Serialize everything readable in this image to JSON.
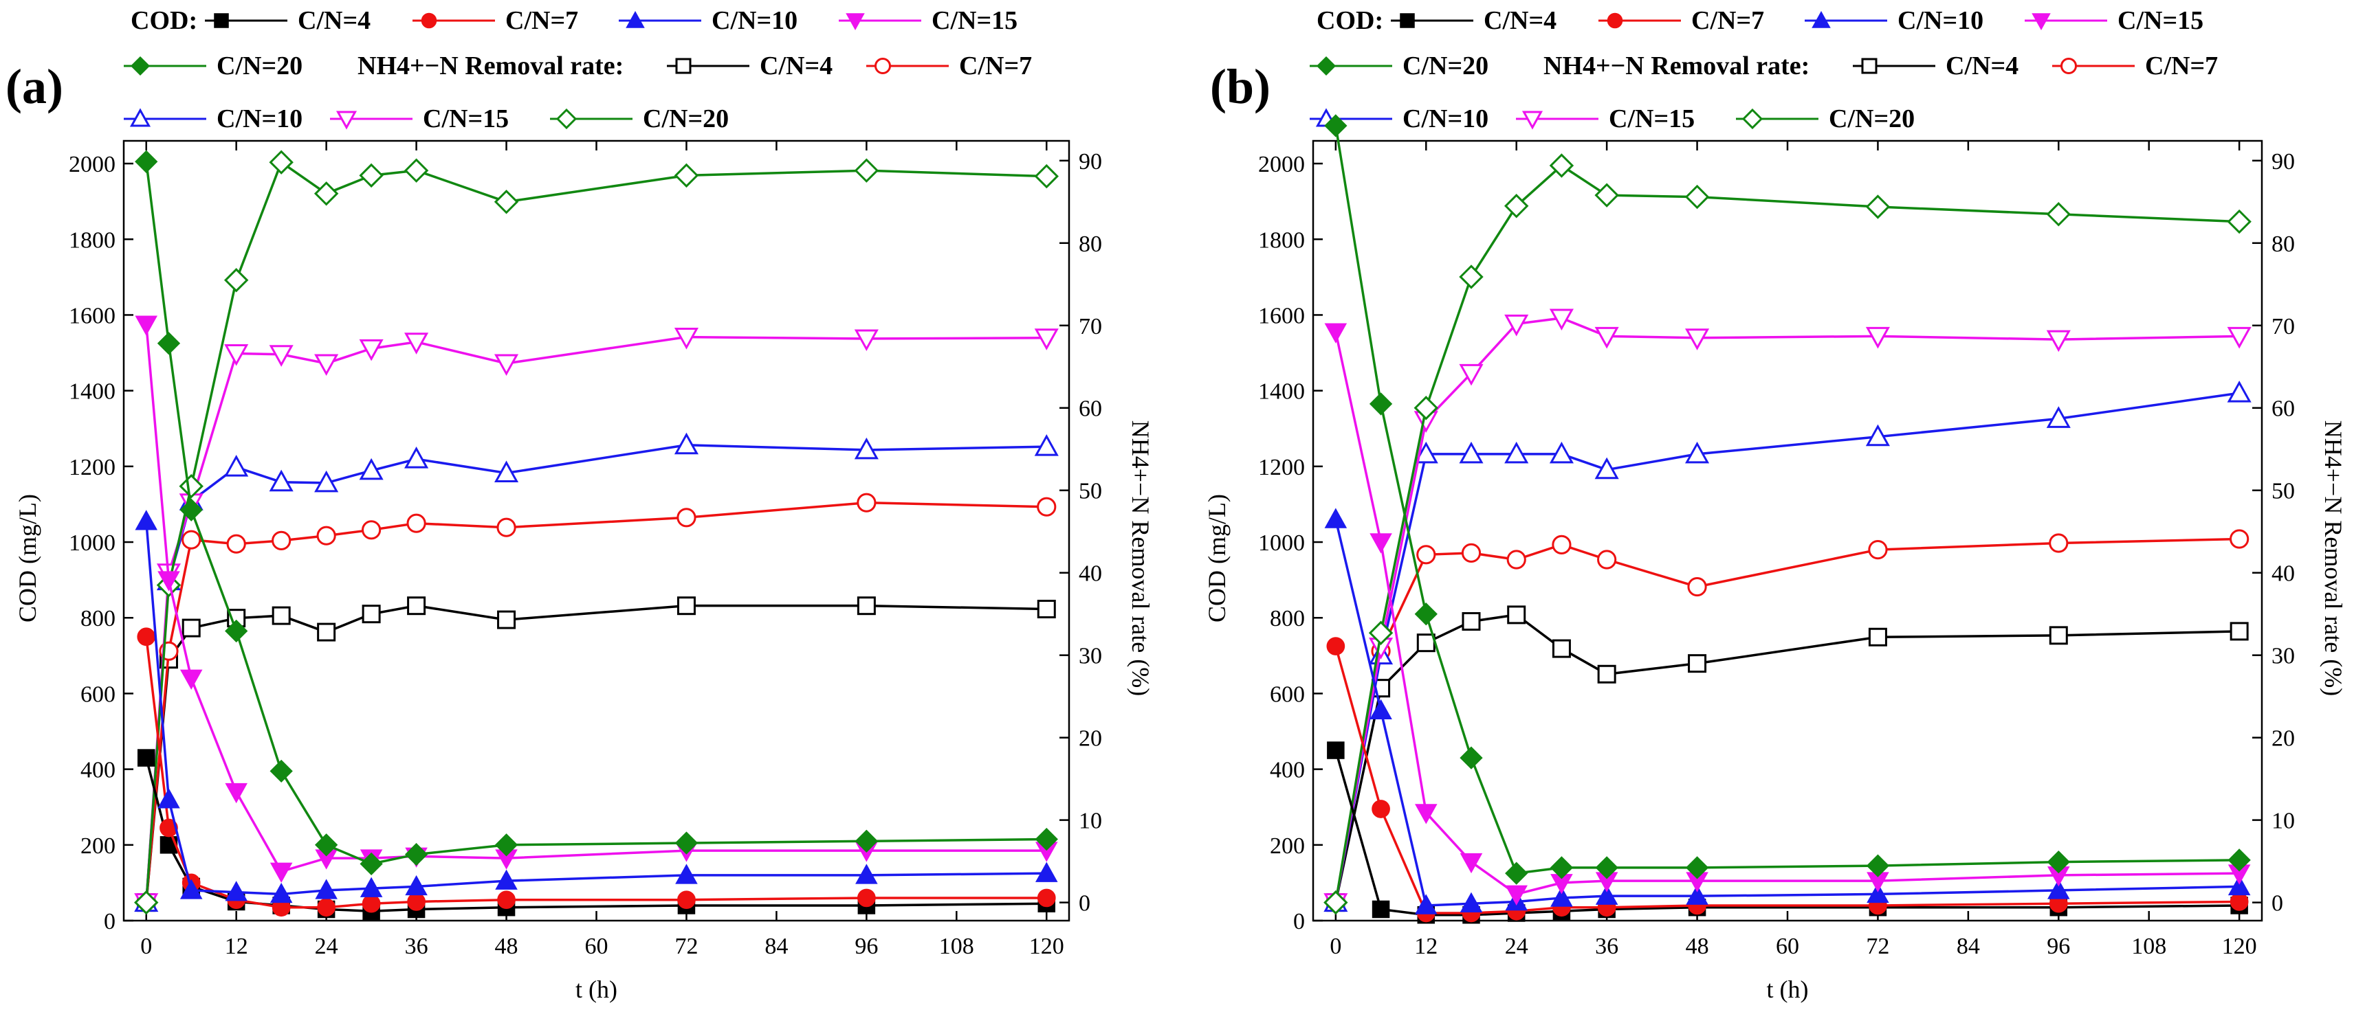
{
  "chart_data": [
    {
      "panel": "(a)",
      "type": "line",
      "legend": {
        "cod_prefix": "COD:",
        "nh4_prefix": "NH4+−N Removal rate:",
        "labels": [
          "C/N=4",
          "C/N=7",
          "C/N=10",
          "C/N=15",
          "C/N=20"
        ]
      },
      "xlabel": "t (h)",
      "ylabel": "COD (mg/L)",
      "y2label": "NH4+−N Removal rate (%)",
      "xticks": [
        0,
        12,
        24,
        36,
        48,
        60,
        72,
        84,
        96,
        108,
        120
      ],
      "yticks": [
        0,
        200,
        400,
        600,
        800,
        1000,
        1200,
        1400,
        1600,
        1800,
        2000
      ],
      "y2ticks": [
        0,
        10,
        20,
        30,
        40,
        50,
        60,
        70,
        80,
        90
      ],
      "xlim": [
        -3,
        123
      ],
      "ylim": [
        0,
        2060
      ],
      "y2lim": [
        -2.2,
        92.4
      ],
      "x": [
        0,
        3,
        6,
        12,
        18,
        24,
        30,
        36,
        48,
        72,
        96,
        120
      ],
      "cod_series": [
        {
          "name": "C/N=4",
          "values": [
            430,
            200,
            90,
            50,
            40,
            30,
            25,
            30,
            35,
            40,
            40,
            45
          ]
        },
        {
          "name": "C/N=7",
          "values": [
            750,
            245,
            100,
            55,
            35,
            35,
            45,
            50,
            55,
            55,
            60,
            60
          ]
        },
        {
          "name": "C/N=10",
          "values": [
            1055,
            320,
            80,
            75,
            70,
            80,
            85,
            90,
            105,
            120,
            120,
            125
          ]
        },
        {
          "name": "C/N=15",
          "values": [
            1575,
            900,
            640,
            340,
            130,
            165,
            165,
            170,
            165,
            185,
            185,
            185
          ]
        },
        {
          "name": "C/N=20",
          "values": [
            2005,
            1525,
            1085,
            765,
            395,
            200,
            150,
            175,
            200,
            205,
            210,
            215
          ]
        }
      ],
      "nh4_series": [
        {
          "name": "C/N=4",
          "values": [
            0,
            29.5,
            33.3,
            34.5,
            34.8,
            32.8,
            35.0,
            36.0,
            34.3,
            36.0,
            36.0,
            35.6
          ]
        },
        {
          "name": "C/N=7",
          "values": [
            0,
            30.5,
            44.0,
            43.5,
            43.9,
            44.5,
            45.2,
            46.0,
            45.5,
            46.7,
            48.5,
            48.0
          ]
        },
        {
          "name": "C/N=10",
          "values": [
            0,
            39.0,
            48.7,
            52.8,
            51.0,
            50.9,
            52.4,
            53.8,
            52.1,
            55.5,
            54.9,
            55.3
          ]
        },
        {
          "name": "C/N=15",
          "values": [
            0,
            40.0,
            48.5,
            66.6,
            66.5,
            65.4,
            67.2,
            68.0,
            65.4,
            68.6,
            68.4,
            68.5
          ]
        },
        {
          "name": "C/N=20",
          "values": [
            0,
            38.5,
            50.5,
            75.5,
            89.8,
            86.0,
            88.2,
            88.8,
            85.0,
            88.2,
            88.8,
            88.1
          ]
        }
      ]
    },
    {
      "panel": "(b)",
      "type": "line",
      "legend": {
        "cod_prefix": "COD:",
        "nh4_prefix": "NH4+−N Removal rate:",
        "labels": [
          "C/N=4",
          "C/N=7",
          "C/N=10",
          "C/N=15",
          "C/N=20"
        ]
      },
      "xlabel": "t (h)",
      "ylabel": "COD (mg/L)",
      "y2label": "NH4+−N Removal rate (%)",
      "xticks": [
        0,
        12,
        24,
        36,
        48,
        60,
        72,
        84,
        96,
        108,
        120
      ],
      "yticks": [
        0,
        200,
        400,
        600,
        800,
        1000,
        1200,
        1400,
        1600,
        1800,
        2000
      ],
      "y2ticks": [
        0,
        10,
        20,
        30,
        40,
        50,
        60,
        70,
        80,
        90
      ],
      "xlim": [
        -3,
        123
      ],
      "ylim": [
        0,
        2060
      ],
      "y2lim": [
        -2.2,
        92.4
      ],
      "x": [
        0,
        6,
        12,
        18,
        24,
        30,
        36,
        48,
        72,
        96,
        120
      ],
      "cod_series": [
        {
          "name": "C/N=4",
          "values": [
            450,
            30,
            15,
            15,
            20,
            25,
            30,
            35,
            35,
            35,
            40
          ]
        },
        {
          "name": "C/N=7",
          "values": [
            725,
            295,
            20,
            20,
            25,
            35,
            35,
            40,
            40,
            45,
            50
          ]
        },
        {
          "name": "C/N=10",
          "values": [
            1060,
            555,
            40,
            45,
            50,
            60,
            65,
            65,
            70,
            80,
            90
          ]
        },
        {
          "name": "C/N=15",
          "values": [
            1555,
            1000,
            285,
            155,
            70,
            100,
            105,
            105,
            105,
            120,
            125
          ]
        },
        {
          "name": "C/N=20",
          "values": [
            2100,
            1365,
            810,
            430,
            125,
            140,
            140,
            140,
            145,
            155,
            160
          ]
        }
      ],
      "nh4_series": [
        {
          "name": "C/N=4",
          "values": [
            0,
            26.0,
            31.5,
            34.1,
            34.9,
            30.8,
            27.7,
            29.0,
            32.2,
            32.4,
            32.9
          ]
        },
        {
          "name": "C/N=7",
          "values": [
            0,
            30.5,
            42.2,
            42.4,
            41.6,
            43.4,
            41.6,
            38.3,
            42.8,
            43.6,
            44.1
          ]
        },
        {
          "name": "C/N=10",
          "values": [
            0,
            30.0,
            54.4,
            54.4,
            54.4,
            54.4,
            52.5,
            54.4,
            56.5,
            58.7,
            61.8
          ]
        },
        {
          "name": "C/N=15",
          "values": [
            0,
            31.0,
            58.5,
            64.2,
            70.2,
            70.9,
            68.7,
            68.5,
            68.7,
            68.3,
            68.7
          ]
        },
        {
          "name": "C/N=20",
          "values": [
            0,
            32.7,
            60.0,
            75.9,
            84.5,
            89.4,
            85.8,
            85.6,
            84.4,
            83.5,
            82.6
          ]
        }
      ]
    }
  ],
  "series_colors": [
    "#000000",
    "#ee1111",
    "#1a1aee",
    "#ee11ee",
    "#118811"
  ],
  "series_markers": [
    "square",
    "circle",
    "triangle-up",
    "triangle-down",
    "diamond"
  ]
}
